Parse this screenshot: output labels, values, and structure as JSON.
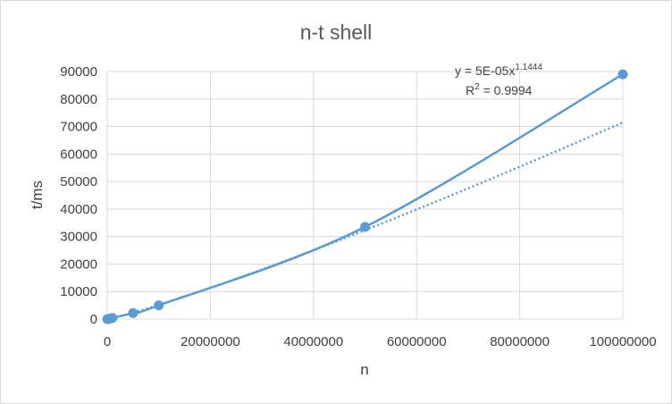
{
  "chart_data": {
    "type": "scatter",
    "title": "n-t shell",
    "xlabel": "n",
    "ylabel": "t/ms",
    "xlim": [
      0,
      100000000
    ],
    "ylim": [
      0,
      90000
    ],
    "x_ticks": [
      "0",
      "20000000",
      "40000000",
      "60000000",
      "80000000",
      "100000000"
    ],
    "y_ticks": [
      "0",
      "10000",
      "20000",
      "30000",
      "40000",
      "50000",
      "60000",
      "70000",
      "80000",
      "90000"
    ],
    "grid": true,
    "series": [
      {
        "x": [
          10000,
          100000,
          500000,
          1000000,
          5000000,
          10000000,
          50000000,
          100000000
        ],
        "y": [
          0,
          20,
          150,
          400,
          2200,
          5000,
          33500,
          89000
        ],
        "color": "#5B9BD5",
        "line": "smooth-solid"
      }
    ],
    "trendline": {
      "type": "power",
      "style": "dotted",
      "equation": {
        "prefix": "y = 5E-05x",
        "exponent": "1.1444"
      },
      "r_squared": {
        "label": "R",
        "power": "2",
        "value": " = 0.9994"
      },
      "coefficient": 5e-05,
      "exponent_value": 1.1444
    }
  }
}
